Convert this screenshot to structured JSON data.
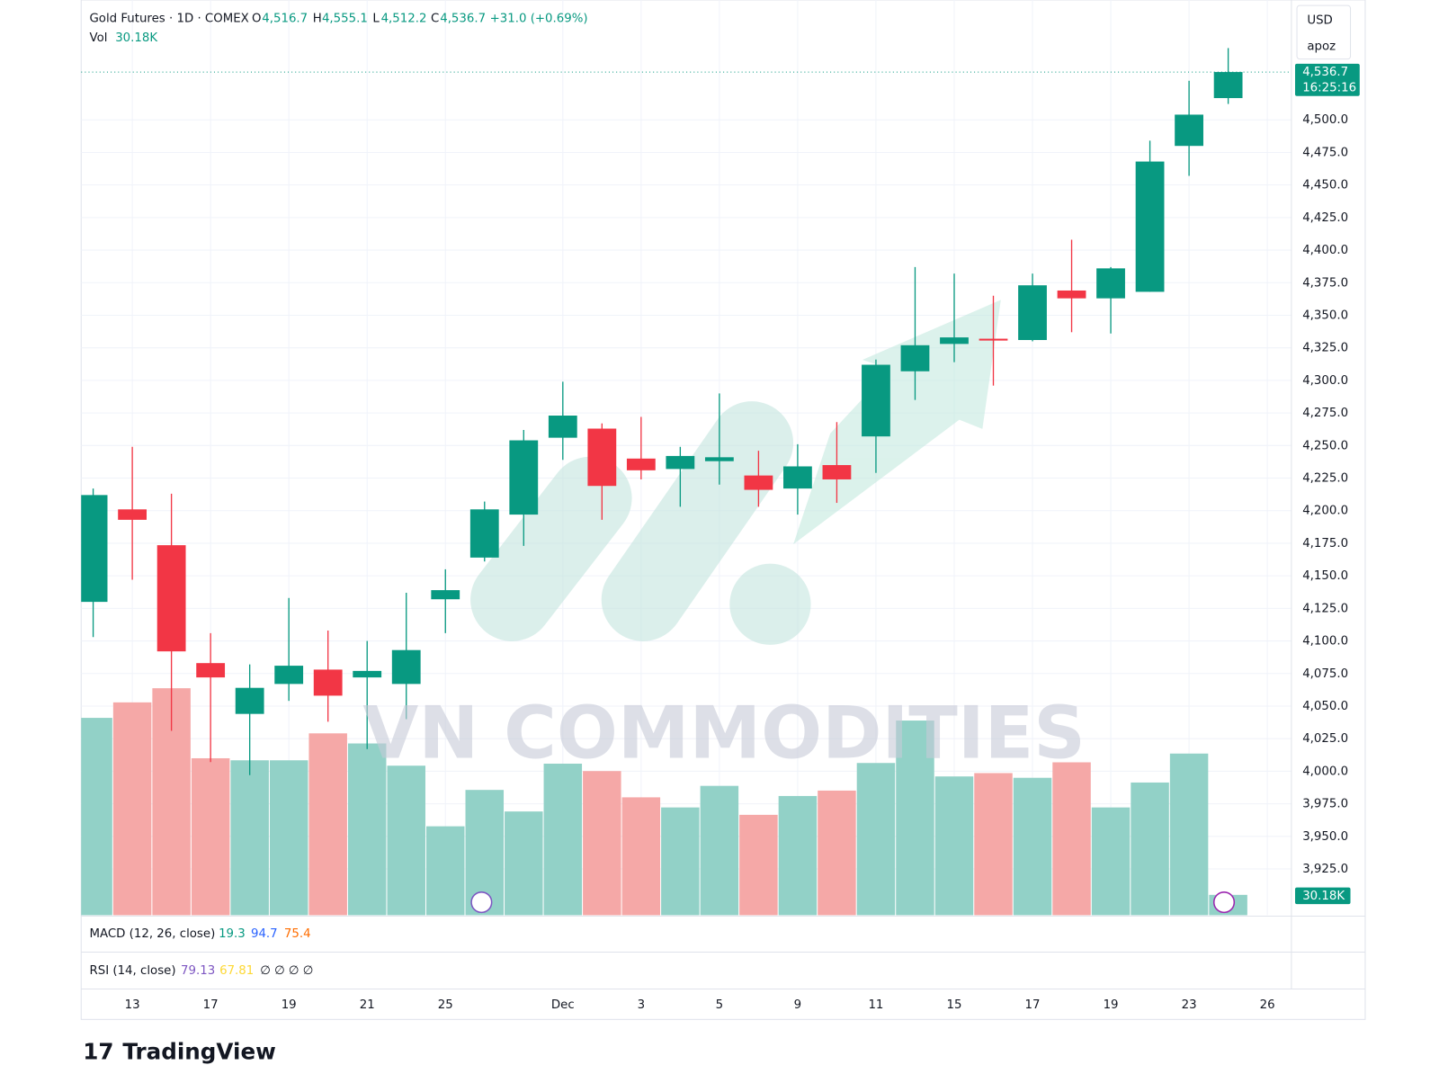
{
  "header": {
    "symbol": "Gold Futures · 1D · COMEX",
    "o_label": "O",
    "o_value": "4,516.7",
    "h_label": "H",
    "h_value": "4,555.1",
    "l_label": "L",
    "l_value": "4,512.2",
    "c_label": "C",
    "c_value": "4,536.7",
    "change": "+31.0 (+0.69%)",
    "vol_label": "Vol",
    "vol_value": "30.18K"
  },
  "axis_header": {
    "currency": "USD",
    "user": "apoz"
  },
  "last_price": {
    "label": "4,536.7",
    "countdown": "16:25:16",
    "volume_label": "30.18K"
  },
  "indicators": {
    "macd": {
      "name": "MACD (12, 26, close)",
      "values": [
        "19.3",
        "94.7",
        "75.4"
      ]
    },
    "rsi": {
      "name": "RSI (14, close)",
      "values": [
        "79.13",
        "67.81"
      ],
      "extra": "∅ ∅ ∅ ∅"
    }
  },
  "watermark": "VN COMMODITIES",
  "brand": "TradingView",
  "chart_data": {
    "type": "candlestick",
    "categories": [
      null,
      "13",
      null,
      "17",
      null,
      "19",
      null,
      "21",
      null,
      "25",
      null,
      null,
      "Dec",
      null,
      "3",
      null,
      "5",
      null,
      "9",
      null,
      "11",
      null,
      "15",
      null,
      "17",
      null,
      "19",
      null,
      "23",
      null,
      "26"
    ],
    "open": [
      4130,
      4201,
      4173.5,
      4083,
      4044,
      4067,
      4078,
      4072,
      4067,
      4132,
      4164,
      4197,
      4256,
      4263,
      4240,
      4232,
      4238,
      4227,
      4217,
      4235,
      4257,
      4307,
      4328,
      4332,
      4331,
      4369,
      4363,
      4368,
      4480,
      4516.7,
      null
    ],
    "high": [
      4217,
      4249,
      4213,
      4106,
      4082,
      4133,
      4108,
      4100,
      4137,
      4155,
      4207,
      4262,
      4299,
      4267,
      4272,
      4249,
      4290,
      4246,
      4251,
      4268,
      4316,
      4387,
      4382,
      4365,
      4382,
      4408,
      4387,
      4484,
      4530,
      4555.1,
      null
    ],
    "low": [
      4103,
      4147,
      4031,
      4007,
      3997,
      4054,
      4038,
      4017,
      4040,
      4106,
      4161,
      4173,
      4239,
      4193,
      4224,
      4203,
      4220,
      4203,
      4197,
      4206,
      4229,
      4285,
      4314,
      4296,
      4330,
      4337,
      4336,
      4368,
      4457,
      4512.2,
      null
    ],
    "close": [
      4212,
      4193,
      4092,
      4072,
      4064,
      4081,
      4058,
      4077,
      4093,
      4139,
      4201,
      4254,
      4273,
      4219,
      4231,
      4242,
      4241,
      4216,
      4234,
      4224,
      4312,
      4327,
      4333,
      4331,
      4373,
      4363,
      4386,
      4468,
      4504,
      4536.7,
      null
    ],
    "volume": [
      293,
      316,
      337,
      233,
      230,
      230,
      270,
      255,
      222,
      132,
      186,
      154,
      225,
      214,
      175,
      160,
      192,
      149,
      177,
      185,
      226,
      289,
      206,
      211,
      204,
      227,
      160,
      197,
      240,
      30.18,
      null
    ],
    "last_close": 4536.7,
    "up_color": "#089981",
    "down_color": "#f23645",
    "volume_up_color": "#92d1c7",
    "volume_down_color": "#f5a8a7",
    "ylim": [
      3889.5,
      4592
    ],
    "yticks": [
      {
        "value": 4500,
        "label": "4,500.0"
      },
      {
        "value": 4475,
        "label": "4,475.0"
      },
      {
        "value": 4450,
        "label": "4,450.0"
      },
      {
        "value": 4425,
        "label": "4,425.0"
      },
      {
        "value": 4400,
        "label": "4,400.0"
      },
      {
        "value": 4375,
        "label": "4,375.0"
      },
      {
        "value": 4350,
        "label": "4,350.0"
      },
      {
        "value": 4325,
        "label": "4,325.0"
      },
      {
        "value": 4300,
        "label": "4,300.0"
      },
      {
        "value": 4275,
        "label": "4,275.0"
      },
      {
        "value": 4250,
        "label": "4,250.0"
      },
      {
        "value": 4225,
        "label": "4,225.0"
      },
      {
        "value": 4200,
        "label": "4,200.0"
      },
      {
        "value": 4175,
        "label": "4,175.0"
      },
      {
        "value": 4150,
        "label": "4,150.0"
      },
      {
        "value": 4125,
        "label": "4,125.0"
      },
      {
        "value": 4100,
        "label": "4,100.0"
      },
      {
        "value": 4075,
        "label": "4,075.0"
      },
      {
        "value": 4050,
        "label": "4,050.0"
      },
      {
        "value": 4025,
        "label": "4,025.0"
      },
      {
        "value": 4000,
        "label": "4,000.0"
      },
      {
        "value": 3975,
        "label": "3,975.0"
      },
      {
        "value": 3950,
        "label": "3,950.0"
      },
      {
        "value": 3925,
        "label": "3,925.0"
      }
    ],
    "grid": true
  }
}
